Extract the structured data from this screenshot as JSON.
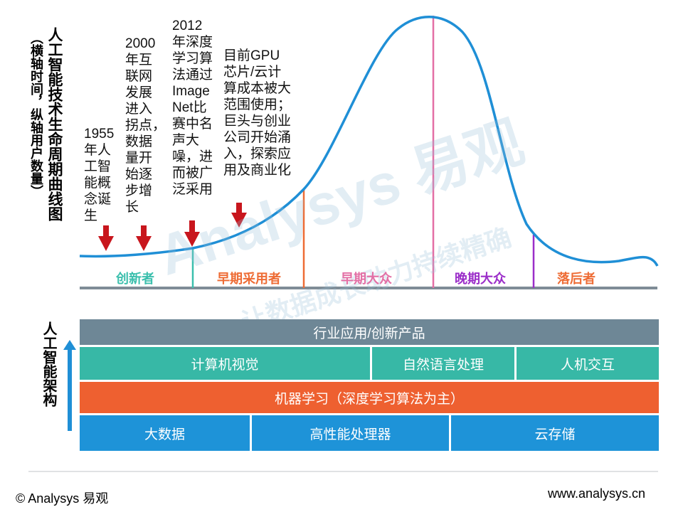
{
  "title": {
    "main": "人工智能技术生命周期曲线图",
    "sub": "（横轴时间，纵轴用户数量）"
  },
  "annotations": [
    {
      "text": "1955\n年人\n工智\n能概\n念诞\n生"
    },
    {
      "text": "2000\n年互\n联网\n发展\n进入\n拐点，\n数据\n量开\n始逐\n步增\n长"
    },
    {
      "text": "2012\n年深度\n学习算\n法通过\nImage\nNet比\n赛中名\n声大\n噪，进\n而被广\n泛采用"
    },
    {
      "text": "目前GPU\n芯片/云计\n算成本被大\n范围使用；\n巨头与创业\n公司开始涌\n入，探索应\n用及商业化"
    }
  ],
  "phases": [
    {
      "label": "创新者",
      "color": "#3bbfad"
    },
    {
      "label": "早期采用者",
      "color": "#ee6c35"
    },
    {
      "label": "早期大众",
      "color": "#e36fa5"
    },
    {
      "label": "晚期大众",
      "color": "#9b2ec9"
    },
    {
      "label": "落后者",
      "color": "#ee6c35"
    }
  ],
  "colors": {
    "curve": "#1f8fd6",
    "axis": "#7f8c96",
    "arrow": "#c8161d",
    "arch_arrow": "#1f8fd6",
    "industry": "#6e8796",
    "teal": "#37b8a6",
    "orange": "#ee6030",
    "blue": "#1e93d8"
  },
  "architecture": {
    "label": "人工智能架构",
    "layers": {
      "industry": "行业应用/创新产品",
      "cv": "计算机视觉",
      "nlp": "自然语言处理",
      "hci": "人机交互",
      "ml": "机器学习（深度学习算法为主）",
      "bigdata": "大数据",
      "processor": "高性能处理器",
      "storage": "云存储"
    }
  },
  "watermark": {
    "brand": "Analysys 易观",
    "slogan": "让数据成长助力持续精确"
  },
  "footer": {
    "copyright": "© Analysys 易观",
    "url": "www.analysys.cn"
  }
}
